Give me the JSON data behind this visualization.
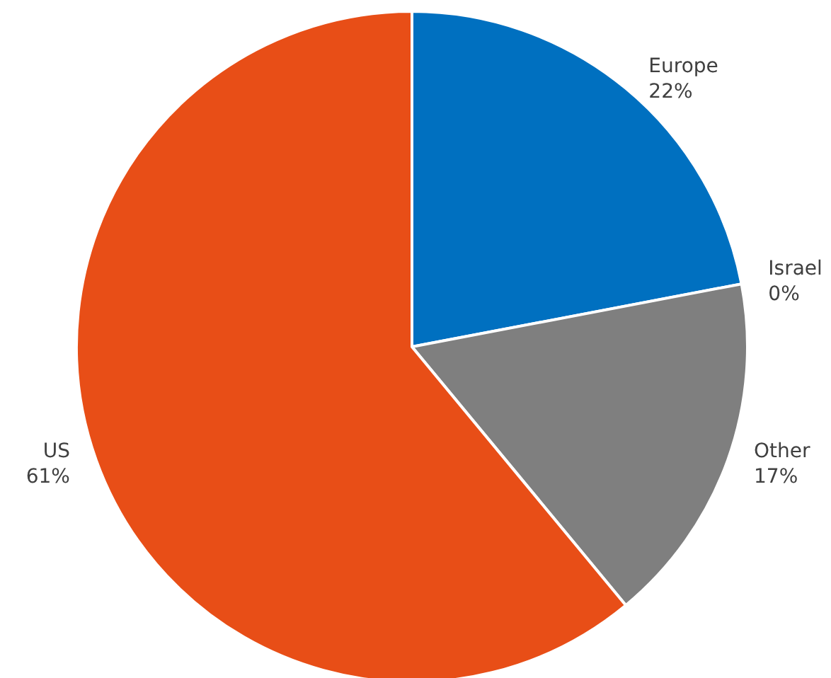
{
  "chart_data": {
    "type": "pie",
    "categories": [
      "Europe",
      "Israel",
      "Other",
      "US"
    ],
    "values": [
      22,
      0,
      17,
      61
    ],
    "value_labels": [
      "22%",
      "0%",
      "17%",
      "61%"
    ],
    "colors": [
      "#0070c0",
      "#ffc000",
      "#7f7f7f",
      "#e84e17"
    ],
    "legend": false
  }
}
